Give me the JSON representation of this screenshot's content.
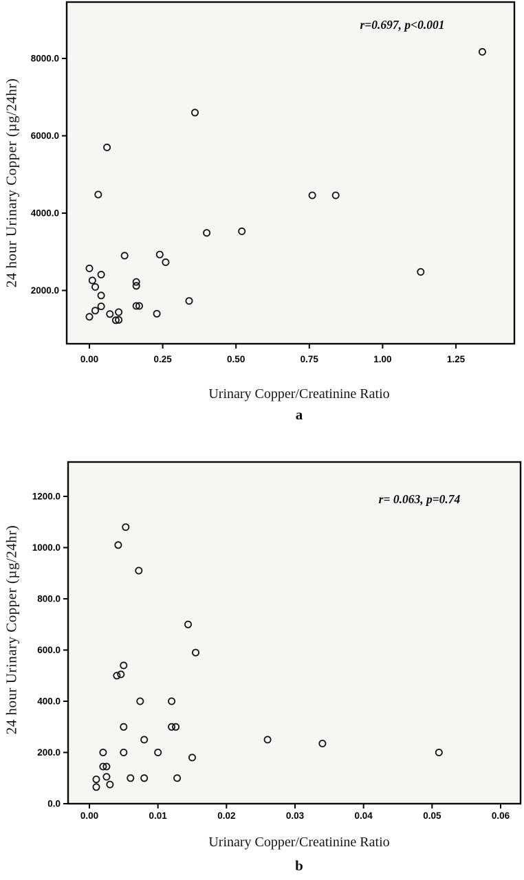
{
  "page": {
    "background": "#ffffff",
    "plot_background": "#f7f6f3",
    "frame_color": "#0a0a0a",
    "marker_color": "#151515"
  },
  "chart_data": [
    {
      "type": "scatter",
      "panel_label": "a",
      "annotation": "r=0.697, p<0.001",
      "xlabel": "Urinary Copper/Creatinine Ratio",
      "ylabel": "24 hour Urinary Copper (µg/24hr)",
      "marker": "open-circle",
      "grid": false,
      "legend": "none",
      "xlim": [
        -0.08,
        1.45
      ],
      "ylim": [
        600,
        9450
      ],
      "x_ticks": [
        "0.00",
        "0.25",
        "0.50",
        "0.75",
        "1.00",
        "1.25"
      ],
      "x_tick_values": [
        0,
        0.25,
        0.5,
        0.75,
        1.0,
        1.25
      ],
      "y_ticks": [
        "8000.0",
        "6000.0",
        "4000.0",
        "2000.0"
      ],
      "y_tick_values": [
        8000,
        6000,
        4000,
        2000
      ],
      "points": [
        [
          0.0,
          2570
        ],
        [
          0.0,
          1320
        ],
        [
          0.01,
          2260
        ],
        [
          0.02,
          2090
        ],
        [
          0.02,
          1480
        ],
        [
          0.03,
          4480
        ],
        [
          0.04,
          2410
        ],
        [
          0.04,
          1870
        ],
        [
          0.04,
          1590
        ],
        [
          0.06,
          5700
        ],
        [
          0.07,
          1390
        ],
        [
          0.09,
          1230
        ],
        [
          0.1,
          1240
        ],
        [
          0.1,
          1440
        ],
        [
          0.12,
          2900
        ],
        [
          0.16,
          2220
        ],
        [
          0.16,
          2120
        ],
        [
          0.16,
          1600
        ],
        [
          0.17,
          1600
        ],
        [
          0.23,
          1400
        ],
        [
          0.24,
          2930
        ],
        [
          0.26,
          2730
        ],
        [
          0.34,
          1730
        ],
        [
          0.36,
          6600
        ],
        [
          0.4,
          3490
        ],
        [
          0.52,
          3530
        ],
        [
          0.76,
          4460
        ],
        [
          0.84,
          4460
        ],
        [
          1.13,
          2480
        ],
        [
          1.34,
          8170
        ]
      ]
    },
    {
      "type": "scatter",
      "panel_label": "b",
      "annotation": "r= 0.063, p=0.74",
      "xlabel": "Urinary Copper/Creatinine Ratio",
      "ylabel": "24 hour Urinary Copper (µg/24hr)",
      "marker": "open-circle",
      "grid": false,
      "legend": "none",
      "xlim": [
        -0.003,
        0.063
      ],
      "ylim": [
        -60,
        1275
      ],
      "x_ticks": [
        "0.00",
        "0.01",
        "0.02",
        "0.03",
        "0.04",
        "0.05",
        "0.06"
      ],
      "x_tick_values": [
        0,
        0.01,
        0.02,
        0.03,
        0.04,
        0.05,
        0.06
      ],
      "y_ticks": [
        "1200.0",
        "1000.0",
        "800.0",
        "600.0",
        "400.0",
        "200.0",
        "0.0"
      ],
      "y_tick_values": [
        1200,
        1000,
        800,
        600,
        400,
        200,
        0
      ],
      "points": [
        [
          0.001,
          65
        ],
        [
          0.001,
          95
        ],
        [
          0.002,
          200
        ],
        [
          0.002,
          145
        ],
        [
          0.0025,
          145
        ],
        [
          0.0025,
          105
        ],
        [
          0.003,
          75
        ],
        [
          0.004,
          500
        ],
        [
          0.0042,
          1010
        ],
        [
          0.0046,
          505
        ],
        [
          0.005,
          540
        ],
        [
          0.005,
          300
        ],
        [
          0.005,
          200
        ],
        [
          0.0053,
          1080
        ],
        [
          0.006,
          100
        ],
        [
          0.0072,
          910
        ],
        [
          0.0074,
          400
        ],
        [
          0.008,
          250
        ],
        [
          0.008,
          100
        ],
        [
          0.01,
          200
        ],
        [
          0.012,
          400
        ],
        [
          0.012,
          300
        ],
        [
          0.0126,
          300
        ],
        [
          0.0128,
          100
        ],
        [
          0.0144,
          700
        ],
        [
          0.015,
          180
        ],
        [
          0.0155,
          590
        ],
        [
          0.026,
          250
        ],
        [
          0.034,
          235
        ],
        [
          0.051,
          200
        ]
      ]
    }
  ]
}
